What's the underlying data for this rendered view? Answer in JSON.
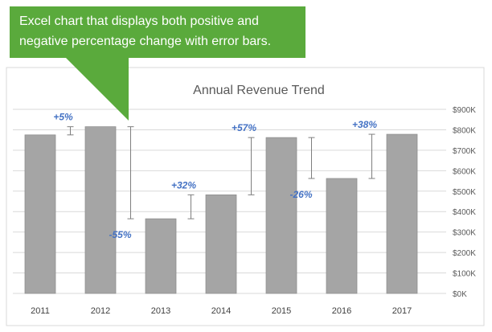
{
  "callout": {
    "text": "Excel chart that displays both positive and negative percentage change with error bars.",
    "color": "#5aaa3c",
    "text_color": "#ffffff"
  },
  "chart_data": {
    "type": "bar",
    "title": "Annual Revenue Trend",
    "categories": [
      "2011",
      "2012",
      "2013",
      "2014",
      "2015",
      "2016",
      "2017"
    ],
    "values": [
      775,
      815,
      365,
      482,
      762,
      562,
      778
    ],
    "ylim": [
      0,
      900
    ],
    "y_ticks": [
      0,
      100,
      200,
      300,
      400,
      500,
      600,
      700,
      800,
      900
    ],
    "y_tick_labels": [
      "$0K",
      "$100K",
      "$200K",
      "$300K",
      "$400K",
      "$500K",
      "$600K",
      "$700K",
      "$800K",
      "$900K"
    ],
    "y_axis_position": "right",
    "gridlines": true,
    "xlabel": "",
    "ylabel": "",
    "bar_color": "#a5a5a5",
    "bar_edge_color": "#8c8c8c",
    "label_color": "#4472c4",
    "changes": [
      {
        "between": [
          "2011",
          "2012"
        ],
        "label": "+5%",
        "low": 775,
        "high": 815
      },
      {
        "between": [
          "2012",
          "2013"
        ],
        "label": "-55%",
        "low": 365,
        "high": 815
      },
      {
        "between": [
          "2013",
          "2014"
        ],
        "label": "+32%",
        "low": 365,
        "high": 482
      },
      {
        "between": [
          "2014",
          "2015"
        ],
        "label": "+57%",
        "low": 482,
        "high": 762
      },
      {
        "between": [
          "2015",
          "2016"
        ],
        "label": "-26%",
        "low": 562,
        "high": 762
      },
      {
        "between": [
          "2016",
          "2017"
        ],
        "label": "+38%",
        "low": 562,
        "high": 778
      }
    ]
  }
}
